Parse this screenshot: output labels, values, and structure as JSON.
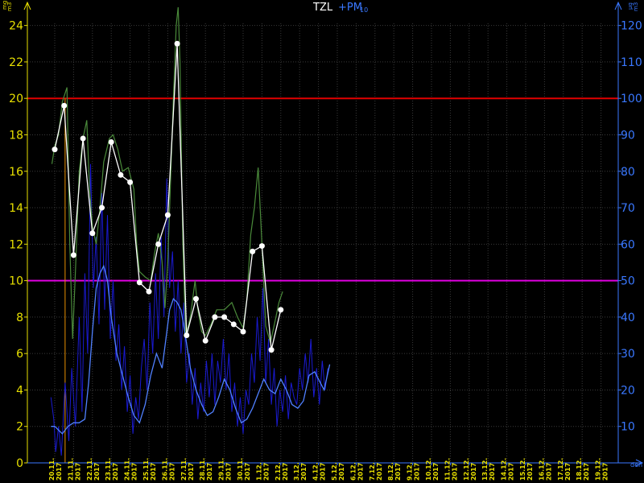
{
  "colors": {
    "background": "#000000",
    "left_axis": "#e8e000",
    "right_axis": "#3a78ff",
    "grid": "#3a3a3a",
    "limit_pm10": "#e00000",
    "limit_tzl": "#e000e0",
    "tzl_series": "#4a8a3a",
    "daily_points": "#ffffff",
    "pm10_series": "#1a1ad0",
    "pm10_smooth": "#5080ff",
    "cursor": "#e89000"
  },
  "chart_data": {
    "type": "line",
    "title": {
      "left": "TZL",
      "right": "+PM",
      "right_sub": "10"
    },
    "y_left": {
      "unit_num": "mg",
      "unit_den": "m3",
      "range": [
        0,
        25
      ],
      "ticks": [
        0,
        2,
        4,
        6,
        8,
        10,
        12,
        14,
        16,
        18,
        20,
        22,
        24
      ]
    },
    "y_right": {
      "unit_num": "µg",
      "unit_den": "m3",
      "range": [
        0,
        125
      ],
      "ticks": [
        10,
        20,
        30,
        40,
        50,
        60,
        70,
        80,
        90,
        100,
        110,
        120
      ]
    },
    "x_unit": "den",
    "date_labels": [
      "20.11.",
      "21.11.",
      "22.11.",
      "23.11.",
      "24.11.",
      "25.11.",
      "26.11.",
      "27.11.",
      "28.11.",
      "29.11.",
      "30.11.",
      "1.12.",
      "2.12.",
      "3.12.",
      "4.12.",
      "5.12.",
      "6.12.",
      "7.12.",
      "8.12.",
      "9.12.",
      "10.12.",
      "11.12.",
      "12.12.",
      "13.12.",
      "14.12.",
      "15.12.",
      "16.12.",
      "17.12.",
      "18.12.",
      "19.12."
    ],
    "year_label": "2017",
    "limits": {
      "pm10_limit": 100,
      "tzl_limit": 50
    },
    "cursor_day": 0.55,
    "tzl_daily": [
      {
        "day": 0.0,
        "value": 17.2
      },
      {
        "day": 0.5,
        "value": 19.6
      },
      {
        "day": 1.0,
        "value": 11.4
      },
      {
        "day": 1.5,
        "value": 17.8
      },
      {
        "day": 2.0,
        "value": 12.6
      },
      {
        "day": 2.5,
        "value": 14.0
      },
      {
        "day": 3.0,
        "value": 17.6
      },
      {
        "day": 3.5,
        "value": 15.8
      },
      {
        "day": 4.0,
        "value": 15.4
      },
      {
        "day": 4.5,
        "value": 9.9
      },
      {
        "day": 5.0,
        "value": 9.4
      },
      {
        "day": 5.5,
        "value": 12.0
      },
      {
        "day": 6.0,
        "value": 13.6
      },
      {
        "day": 6.5,
        "value": 23.0
      },
      {
        "day": 7.0,
        "value": 7.0
      },
      {
        "day": 7.5,
        "value": 9.0
      },
      {
        "day": 8.0,
        "value": 6.7
      },
      {
        "day": 8.5,
        "value": 8.0
      },
      {
        "day": 9.0,
        "value": 8.0
      },
      {
        "day": 9.5,
        "value": 7.6
      },
      {
        "day": 10.0,
        "value": 7.2
      },
      {
        "day": 10.5,
        "value": 11.6
      },
      {
        "day": 11.0,
        "value": 11.9
      },
      {
        "day": 11.5,
        "value": 6.2
      },
      {
        "day": 12.0,
        "value": 8.4
      }
    ],
    "tzl_trend": [
      {
        "day": -0.15,
        "value": 16.4
      },
      {
        "day": 0.0,
        "value": 17.4
      },
      {
        "day": 0.2,
        "value": 18.0
      },
      {
        "day": 0.4,
        "value": 19.8
      },
      {
        "day": 0.65,
        "value": 20.6
      },
      {
        "day": 0.8,
        "value": 12.0
      },
      {
        "day": 0.95,
        "value": 6.8
      },
      {
        "day": 1.1,
        "value": 10.5
      },
      {
        "day": 1.3,
        "value": 16.0
      },
      {
        "day": 1.5,
        "value": 17.8
      },
      {
        "day": 1.7,
        "value": 18.8
      },
      {
        "day": 1.85,
        "value": 15.0
      },
      {
        "day": 2.0,
        "value": 13.0
      },
      {
        "day": 2.2,
        "value": 12.0
      },
      {
        "day": 2.4,
        "value": 14.0
      },
      {
        "day": 2.6,
        "value": 16.5
      },
      {
        "day": 2.9,
        "value": 17.8
      },
      {
        "day": 3.1,
        "value": 18.0
      },
      {
        "day": 3.35,
        "value": 17.2
      },
      {
        "day": 3.6,
        "value": 16.0
      },
      {
        "day": 3.9,
        "value": 16.2
      },
      {
        "day": 4.2,
        "value": 15.0
      },
      {
        "day": 4.35,
        "value": 12.0
      },
      {
        "day": 4.5,
        "value": 10.5
      },
      {
        "day": 4.8,
        "value": 10.2
      },
      {
        "day": 5.1,
        "value": 10.0
      },
      {
        "day": 5.3,
        "value": 11.5
      },
      {
        "day": 5.5,
        "value": 12.6
      },
      {
        "day": 5.7,
        "value": 11.0
      },
      {
        "day": 5.85,
        "value": 8.5
      },
      {
        "day": 6.0,
        "value": 11.0
      },
      {
        "day": 6.15,
        "value": 15.5
      },
      {
        "day": 6.3,
        "value": 20.0
      },
      {
        "day": 6.45,
        "value": 24.0
      },
      {
        "day": 6.55,
        "value": 25.0
      },
      {
        "day": 6.65,
        "value": 22.0
      },
      {
        "day": 6.8,
        "value": 12.0
      },
      {
        "day": 6.95,
        "value": 7.0
      },
      {
        "day": 7.2,
        "value": 8.0
      },
      {
        "day": 7.45,
        "value": 10.0
      },
      {
        "day": 7.6,
        "value": 8.4
      },
      {
        "day": 7.8,
        "value": 7.2
      },
      {
        "day": 8.0,
        "value": 7.0
      },
      {
        "day": 8.3,
        "value": 7.6
      },
      {
        "day": 8.6,
        "value": 8.4
      },
      {
        "day": 9.0,
        "value": 8.4
      },
      {
        "day": 9.4,
        "value": 8.8
      },
      {
        "day": 9.7,
        "value": 8.0
      },
      {
        "day": 10.0,
        "value": 7.4
      },
      {
        "day": 10.2,
        "value": 9.0
      },
      {
        "day": 10.4,
        "value": 12.5
      },
      {
        "day": 10.6,
        "value": 14.0
      },
      {
        "day": 10.8,
        "value": 16.2
      },
      {
        "day": 11.0,
        "value": 12.0
      },
      {
        "day": 11.2,
        "value": 7.5
      },
      {
        "day": 11.45,
        "value": 6.6
      },
      {
        "day": 11.7,
        "value": 7.8
      },
      {
        "day": 11.9,
        "value": 8.8
      },
      {
        "day": 12.1,
        "value": 9.4
      }
    ],
    "pm10_raw": [
      {
        "day": -0.2,
        "value": 18
      },
      {
        "day": -0.05,
        "value": 12
      },
      {
        "day": 0.05,
        "value": 3
      },
      {
        "day": 0.2,
        "value": 10
      },
      {
        "day": 0.35,
        "value": 2
      },
      {
        "day": 0.55,
        "value": 22
      },
      {
        "day": 0.75,
        "value": 6
      },
      {
        "day": 0.9,
        "value": 26
      },
      {
        "day": 1.1,
        "value": 10
      },
      {
        "day": 1.3,
        "value": 40
      },
      {
        "day": 1.45,
        "value": 14
      },
      {
        "day": 1.6,
        "value": 52
      },
      {
        "day": 1.75,
        "value": 30
      },
      {
        "day": 1.9,
        "value": 82
      },
      {
        "day": 2.05,
        "value": 48
      },
      {
        "day": 2.2,
        "value": 62
      },
      {
        "day": 2.35,
        "value": 38
      },
      {
        "day": 2.5,
        "value": 74
      },
      {
        "day": 2.65,
        "value": 42
      },
      {
        "day": 2.8,
        "value": 68
      },
      {
        "day": 2.95,
        "value": 34
      },
      {
        "day": 3.1,
        "value": 50
      },
      {
        "day": 3.25,
        "value": 28
      },
      {
        "day": 3.4,
        "value": 38
      },
      {
        "day": 3.55,
        "value": 20
      },
      {
        "day": 3.7,
        "value": 32
      },
      {
        "day": 3.85,
        "value": 14
      },
      {
        "day": 4.0,
        "value": 24
      },
      {
        "day": 4.15,
        "value": 8
      },
      {
        "day": 4.3,
        "value": 18
      },
      {
        "day": 4.45,
        "value": 12
      },
      {
        "day": 4.6,
        "value": 26
      },
      {
        "day": 4.75,
        "value": 34
      },
      {
        "day": 4.9,
        "value": 20
      },
      {
        "day": 5.05,
        "value": 44
      },
      {
        "day": 5.2,
        "value": 30
      },
      {
        "day": 5.35,
        "value": 52
      },
      {
        "day": 5.5,
        "value": 34
      },
      {
        "day": 5.65,
        "value": 62
      },
      {
        "day": 5.8,
        "value": 40
      },
      {
        "day": 5.95,
        "value": 78
      },
      {
        "day": 6.1,
        "value": 48
      },
      {
        "day": 6.25,
        "value": 58
      },
      {
        "day": 6.4,
        "value": 36
      },
      {
        "day": 6.55,
        "value": 50
      },
      {
        "day": 6.7,
        "value": 30
      },
      {
        "day": 6.85,
        "value": 44
      },
      {
        "day": 7.0,
        "value": 22
      },
      {
        "day": 7.15,
        "value": 30
      },
      {
        "day": 7.3,
        "value": 16
      },
      {
        "day": 7.45,
        "value": 26
      },
      {
        "day": 7.6,
        "value": 12
      },
      {
        "day": 7.75,
        "value": 22
      },
      {
        "day": 7.9,
        "value": 14
      },
      {
        "day": 8.05,
        "value": 28
      },
      {
        "day": 8.2,
        "value": 18
      },
      {
        "day": 8.35,
        "value": 30
      },
      {
        "day": 8.5,
        "value": 16
      },
      {
        "day": 8.65,
        "value": 28
      },
      {
        "day": 8.8,
        "value": 22
      },
      {
        "day": 8.95,
        "value": 34
      },
      {
        "day": 9.1,
        "value": 20
      },
      {
        "day": 9.25,
        "value": 30
      },
      {
        "day": 9.4,
        "value": 14
      },
      {
        "day": 9.55,
        "value": 22
      },
      {
        "day": 9.7,
        "value": 10
      },
      {
        "day": 9.85,
        "value": 18
      },
      {
        "day": 10.0,
        "value": 8
      },
      {
        "day": 10.15,
        "value": 20
      },
      {
        "day": 10.3,
        "value": 16
      },
      {
        "day": 10.45,
        "value": 30
      },
      {
        "day": 10.6,
        "value": 22
      },
      {
        "day": 10.75,
        "value": 40
      },
      {
        "day": 10.9,
        "value": 28
      },
      {
        "day": 11.05,
        "value": 48
      },
      {
        "day": 11.2,
        "value": 22
      },
      {
        "day": 11.35,
        "value": 34
      },
      {
        "day": 11.5,
        "value": 16
      },
      {
        "day": 11.65,
        "value": 26
      },
      {
        "day": 11.8,
        "value": 10
      },
      {
        "day": 11.95,
        "value": 20
      },
      {
        "day": 12.1,
        "value": 14
      },
      {
        "day": 12.25,
        "value": 24
      },
      {
        "day": 12.4,
        "value": 12
      },
      {
        "day": 12.55,
        "value": 22
      },
      {
        "day": 12.7,
        "value": 18
      },
      {
        "day": 12.85,
        "value": 16
      },
      {
        "day": 13.0,
        "value": 26
      },
      {
        "day": 13.15,
        "value": 20
      },
      {
        "day": 13.3,
        "value": 30
      },
      {
        "day": 13.45,
        "value": 22
      },
      {
        "day": 13.6,
        "value": 34
      },
      {
        "day": 13.75,
        "value": 18
      },
      {
        "day": 13.9,
        "value": 26
      },
      {
        "day": 14.05,
        "value": 16
      },
      {
        "day": 14.2,
        "value": 28
      },
      {
        "day": 14.35,
        "value": 20
      },
      {
        "day": 14.5,
        "value": 26
      }
    ],
    "pm10_smooth": [
      {
        "day": -0.2,
        "value": 10
      },
      {
        "day": 0.0,
        "value": 10
      },
      {
        "day": 0.4,
        "value": 8
      },
      {
        "day": 0.7,
        "value": 10
      },
      {
        "day": 1.0,
        "value": 11
      },
      {
        "day": 1.3,
        "value": 11
      },
      {
        "day": 1.6,
        "value": 12
      },
      {
        "day": 1.8,
        "value": 22
      },
      {
        "day": 2.0,
        "value": 36
      },
      {
        "day": 2.2,
        "value": 48
      },
      {
        "day": 2.4,
        "value": 52
      },
      {
        "day": 2.6,
        "value": 54
      },
      {
        "day": 2.8,
        "value": 50
      },
      {
        "day": 3.0,
        "value": 40
      },
      {
        "day": 3.3,
        "value": 30
      },
      {
        "day": 3.6,
        "value": 24
      },
      {
        "day": 3.9,
        "value": 18
      },
      {
        "day": 4.2,
        "value": 13
      },
      {
        "day": 4.5,
        "value": 11
      },
      {
        "day": 4.8,
        "value": 16
      },
      {
        "day": 5.1,
        "value": 24
      },
      {
        "day": 5.4,
        "value": 30
      },
      {
        "day": 5.7,
        "value": 26
      },
      {
        "day": 5.9,
        "value": 34
      },
      {
        "day": 6.1,
        "value": 42
      },
      {
        "day": 6.3,
        "value": 45
      },
      {
        "day": 6.5,
        "value": 44
      },
      {
        "day": 6.7,
        "value": 42
      },
      {
        "day": 6.9,
        "value": 36
      },
      {
        "day": 7.2,
        "value": 26
      },
      {
        "day": 7.5,
        "value": 20
      },
      {
        "day": 7.8,
        "value": 16
      },
      {
        "day": 8.1,
        "value": 13
      },
      {
        "day": 8.4,
        "value": 14
      },
      {
        "day": 8.7,
        "value": 18
      },
      {
        "day": 9.0,
        "value": 23
      },
      {
        "day": 9.3,
        "value": 20
      },
      {
        "day": 9.6,
        "value": 15
      },
      {
        "day": 9.9,
        "value": 11
      },
      {
        "day": 10.2,
        "value": 12
      },
      {
        "day": 10.5,
        "value": 15
      },
      {
        "day": 10.8,
        "value": 19
      },
      {
        "day": 11.1,
        "value": 23
      },
      {
        "day": 11.4,
        "value": 20
      },
      {
        "day": 11.7,
        "value": 19
      },
      {
        "day": 12.0,
        "value": 23
      },
      {
        "day": 12.3,
        "value": 20
      },
      {
        "day": 12.6,
        "value": 16
      },
      {
        "day": 12.9,
        "value": 15
      },
      {
        "day": 13.2,
        "value": 17
      },
      {
        "day": 13.5,
        "value": 24
      },
      {
        "day": 13.8,
        "value": 25
      },
      {
        "day": 14.1,
        "value": 22
      },
      {
        "day": 14.3,
        "value": 20
      },
      {
        "day": 14.6,
        "value": 27
      }
    ]
  }
}
